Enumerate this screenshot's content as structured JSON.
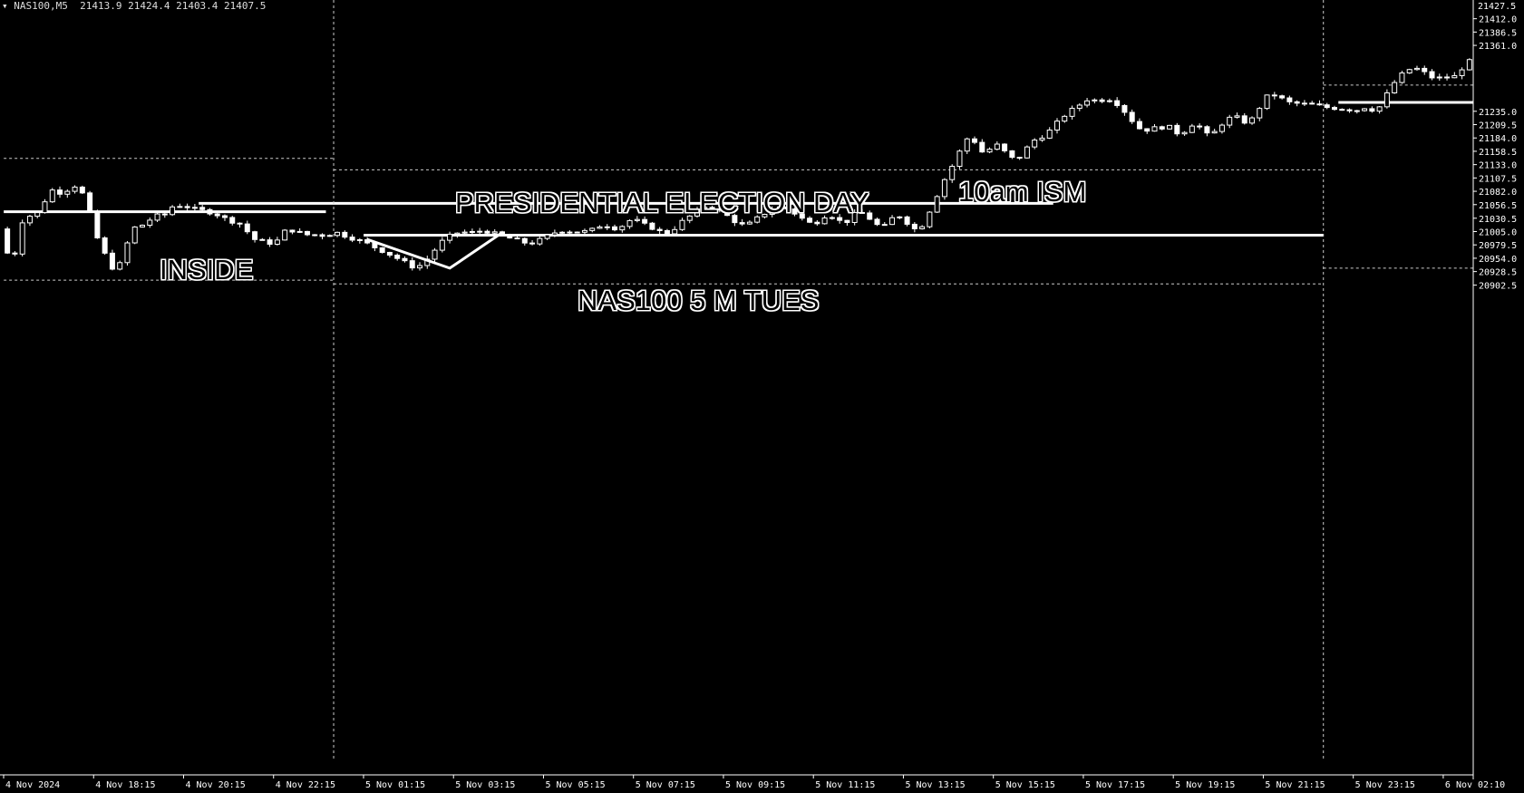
{
  "header": {
    "arrow": "▾",
    "symbol": "NAS100,M5",
    "ohlc": "21413.9 21424.4 21403.4 21407.5"
  },
  "annotations": {
    "inside": "INSIDE",
    "election": "PRESIDENTIAL ELECTION DAY",
    "instrument": "NAS100 5 M   TUES",
    "ism": "10am ISM"
  },
  "colors": {
    "background": "#000000",
    "foreground": "#ffffff",
    "grid": "#cccccc"
  },
  "chart_data": {
    "type": "candlestick",
    "title": "",
    "xlabel": "",
    "ylabel": "",
    "ylim": [
      19992,
      21427
    ],
    "price_axis": {
      "top_label": "21427.5",
      "ticks": [
        {
          "value": 21412.0,
          "label": "21412.0"
        },
        {
          "value": 21386.5,
          "label": "21386.5"
        },
        {
          "value": 21361.0,
          "label": "21361.0"
        },
        {
          "value": 21235.0,
          "label": "21235.0"
        },
        {
          "value": 21209.5,
          "label": "21209.5"
        },
        {
          "value": 21184.0,
          "label": "21184.0"
        },
        {
          "value": 21158.5,
          "label": "21158.5"
        },
        {
          "value": 21133.0,
          "label": "21133.0"
        },
        {
          "value": 21107.5,
          "label": "21107.5"
        },
        {
          "value": 21082.0,
          "label": "21082.0"
        },
        {
          "value": 21056.5,
          "label": "21056.5"
        },
        {
          "value": 21030.5,
          "label": "21030.5"
        },
        {
          "value": 21005.0,
          "label": "21005.0"
        },
        {
          "value": 20979.5,
          "label": "20979.5"
        },
        {
          "value": 20954.0,
          "label": "20954.0"
        },
        {
          "value": 20928.5,
          "label": "20928.5"
        },
        {
          "value": 20902.5,
          "label": "20902.5"
        }
      ]
    },
    "time_axis": [
      {
        "label": "4 Nov 2024",
        "x": 0
      },
      {
        "label": "4 Nov 18:15",
        "x": 12
      },
      {
        "label": "4 Nov 20:15",
        "x": 24
      },
      {
        "label": "4 Nov 22:15",
        "x": 36
      },
      {
        "label": "5 Nov 01:15",
        "x": 48
      },
      {
        "label": "5 Nov 03:15",
        "x": 60
      },
      {
        "label": "5 Nov 05:15",
        "x": 72
      },
      {
        "label": "5 Nov 07:15",
        "x": 84
      },
      {
        "label": "5 Nov 09:15",
        "x": 96
      },
      {
        "label": "5 Nov 11:15",
        "x": 108
      },
      {
        "label": "5 Nov 13:15",
        "x": 120
      },
      {
        "label": "5 Nov 15:15",
        "x": 132
      },
      {
        "label": "5 Nov 17:15",
        "x": 144
      },
      {
        "label": "5 Nov 19:15",
        "x": 156
      },
      {
        "label": "5 Nov 21:15",
        "x": 168
      },
      {
        "label": "5 Nov 23:15",
        "x": 180
      },
      {
        "label": "6 Nov 02:10",
        "x": 192
      }
    ],
    "price_path": [
      [
        0,
        21010
      ],
      [
        1,
        20918
      ],
      [
        2,
        21010
      ],
      [
        3,
        21040
      ],
      [
        4,
        21030
      ],
      [
        5,
        21050
      ],
      [
        6,
        21078
      ],
      [
        7,
        21090
      ],
      [
        8,
        21070
      ],
      [
        9,
        21100
      ],
      [
        10,
        21085
      ],
      [
        11,
        21070
      ],
      [
        12,
        21010
      ],
      [
        13,
        20975
      ],
      [
        14,
        20948
      ],
      [
        15,
        20925
      ],
      [
        16,
        20960
      ],
      [
        17,
        21005
      ],
      [
        18,
        21020
      ],
      [
        19,
        21015
      ],
      [
        20,
        21040
      ],
      [
        21,
        21030
      ],
      [
        22,
        21045
      ],
      [
        23,
        21060
      ],
      [
        24,
        21050
      ],
      [
        25,
        21055
      ],
      [
        26,
        21040
      ],
      [
        27,
        21050
      ],
      [
        28,
        21035
      ],
      [
        29,
        21040
      ],
      [
        30,
        21020
      ],
      [
        31,
        21030
      ],
      [
        32,
        21010
      ],
      [
        33,
        21000
      ],
      [
        34,
        20980
      ],
      [
        35,
        20992
      ],
      [
        36,
        20975
      ],
      [
        37,
        21000
      ],
      [
        38,
        21010
      ],
      [
        39,
        21005
      ],
      [
        40,
        21000
      ],
      [
        41,
        20998
      ],
      [
        42,
        21000
      ],
      [
        43,
        20996
      ],
      [
        44,
        21005
      ],
      [
        45,
        21000
      ],
      [
        46,
        20995
      ],
      [
        47,
        20990
      ],
      [
        48,
        20985
      ],
      [
        49,
        20978
      ],
      [
        50,
        20972
      ],
      [
        51,
        20965
      ],
      [
        52,
        20958
      ],
      [
        53,
        20950
      ],
      [
        54,
        20942
      ],
      [
        55,
        20935
      ],
      [
        56,
        20945
      ],
      [
        57,
        20960
      ],
      [
        58,
        20980
      ],
      [
        59,
        20992
      ],
      [
        60,
        21000
      ],
      [
        61,
        21005
      ],
      [
        62,
        21002
      ],
      [
        63,
        21004
      ],
      [
        64,
        21008
      ],
      [
        65,
        21003
      ],
      [
        66,
        20998
      ],
      [
        67,
        20995
      ],
      [
        68,
        20990
      ],
      [
        69,
        20986
      ],
      [
        70,
        20982
      ],
      [
        71,
        20985
      ],
      [
        72,
        20992
      ],
      [
        73,
        21000
      ],
      [
        74,
        21006
      ],
      [
        75,
        21008
      ],
      [
        76,
        21004
      ],
      [
        77,
        21006
      ],
      [
        78,
        21004
      ],
      [
        79,
        21012
      ],
      [
        80,
        21020
      ],
      [
        81,
        21014
      ],
      [
        82,
        21010
      ],
      [
        83,
        21022
      ],
      [
        84,
        21030
      ],
      [
        85,
        21020
      ],
      [
        86,
        21015
      ],
      [
        87,
        21010
      ],
      [
        88,
        21000
      ],
      [
        89,
        21005
      ],
      [
        90,
        21018
      ],
      [
        91,
        21030
      ],
      [
        92,
        21038
      ],
      [
        93,
        21050
      ],
      [
        94,
        21055
      ],
      [
        95,
        21048
      ],
      [
        96,
        21040
      ],
      [
        97,
        21030
      ],
      [
        98,
        21020
      ],
      [
        99,
        21015
      ],
      [
        100,
        21025
      ],
      [
        101,
        21035
      ],
      [
        102,
        21045
      ],
      [
        103,
        21050
      ],
      [
        104,
        21052
      ],
      [
        105,
        21045
      ],
      [
        106,
        21035
      ],
      [
        107,
        21025
      ],
      [
        108,
        21018
      ],
      [
        109,
        21030
      ],
      [
        110,
        21040
      ],
      [
        111,
        21030
      ],
      [
        112,
        21020
      ],
      [
        113,
        21030
      ],
      [
        114,
        21045
      ],
      [
        115,
        21035
      ],
      [
        116,
        21025
      ],
      [
        117,
        21010
      ],
      [
        118,
        21020
      ],
      [
        119,
        21040
      ],
      [
        120,
        21030
      ],
      [
        121,
        21015
      ],
      [
        122,
        21005
      ],
      [
        123,
        21030
      ],
      [
        124,
        21060
      ],
      [
        125,
        21090
      ],
      [
        126,
        21120
      ],
      [
        127,
        21140
      ],
      [
        128,
        21175
      ],
      [
        129,
        21190
      ],
      [
        130,
        21165
      ],
      [
        131,
        21150
      ],
      [
        132,
        21175
      ],
      [
        133,
        21165
      ],
      [
        134,
        21150
      ],
      [
        135,
        21140
      ],
      [
        136,
        21155
      ],
      [
        137,
        21175
      ],
      [
        138,
        21185
      ],
      [
        139,
        21190
      ],
      [
        140,
        21205
      ],
      [
        141,
        21220
      ],
      [
        142,
        21235
      ],
      [
        143,
        21240
      ],
      [
        144,
        21255
      ],
      [
        145,
        21260
      ],
      [
        146,
        21252
      ],
      [
        147,
        21262
      ],
      [
        148,
        21255
      ],
      [
        149,
        21245
      ],
      [
        150,
        21225
      ],
      [
        151,
        21210
      ],
      [
        152,
        21195
      ],
      [
        153,
        21205
      ],
      [
        154,
        21200
      ],
      [
        155,
        21210
      ],
      [
        156,
        21198
      ],
      [
        157,
        21190
      ],
      [
        158,
        21205
      ],
      [
        159,
        21215
      ],
      [
        160,
        21195
      ],
      [
        161,
        21185
      ],
      [
        162,
        21205
      ],
      [
        163,
        21218
      ],
      [
        164,
        21225
      ],
      [
        165,
        21220
      ],
      [
        166,
        21210
      ],
      [
        167,
        21230
      ],
      [
        168,
        21255
      ],
      [
        169,
        21270
      ],
      [
        170,
        21262
      ],
      [
        171,
        21255
      ],
      [
        172,
        21248
      ],
      [
        173,
        21252
      ],
      [
        174,
        21245
      ],
      [
        175,
        21250
      ],
      [
        176,
        21240
      ],
      [
        177,
        21245
      ],
      [
        178,
        21238
      ],
      [
        179,
        21242
      ],
      [
        180,
        21235
      ],
      [
        181,
        21240
      ],
      [
        182,
        21245
      ],
      [
        183,
        21232
      ],
      [
        184,
        21255
      ],
      [
        185,
        21280
      ],
      [
        186,
        21300
      ],
      [
        187,
        21310
      ],
      [
        188,
        21320
      ],
      [
        189,
        21312
      ],
      [
        190,
        21305
      ],
      [
        191,
        21295
      ],
      [
        192,
        21302
      ],
      [
        193,
        21298
      ],
      [
        194,
        21305
      ],
      [
        195,
        21330
      ]
    ],
    "levels": [
      {
        "type": "solid",
        "value": 21043,
        "from": 0,
        "to": 42,
        "label": "inside-mid-level"
      },
      {
        "type": "solid",
        "value": 21059,
        "from": 26,
        "to": 139,
        "label": "breakout-resistance"
      },
      {
        "type": "solid",
        "value": 20998,
        "from": 48,
        "to": 175,
        "label": "support-level"
      },
      {
        "type": "solid",
        "value": 21252,
        "from": 178,
        "to": 195,
        "label": "new-session-mid"
      },
      {
        "type": "dashed",
        "value": 21145,
        "from": 0,
        "to": 43,
        "label": "prev-range-high"
      },
      {
        "type": "dashed",
        "value": 20912,
        "from": 0,
        "to": 43,
        "label": "prev-range-low"
      },
      {
        "type": "dashed",
        "value": 21123,
        "from": 44,
        "to": 175,
        "label": "inside-high"
      },
      {
        "type": "dashed",
        "value": 20905,
        "from": 44,
        "to": 175,
        "label": "inside-low"
      },
      {
        "type": "dashed",
        "value": 21285,
        "from": 176,
        "to": 195,
        "label": "session-high"
      },
      {
        "type": "dashed",
        "value": 20935,
        "from": 176,
        "to": 195,
        "label": "session-low"
      }
    ],
    "trendlines": [
      {
        "points": [
          [
            48,
            20990
          ],
          [
            59,
            20935
          ],
          [
            66,
            21003
          ]
        ],
        "label": "v-reversal"
      }
    ],
    "vlines": [
      44,
      176
    ]
  }
}
